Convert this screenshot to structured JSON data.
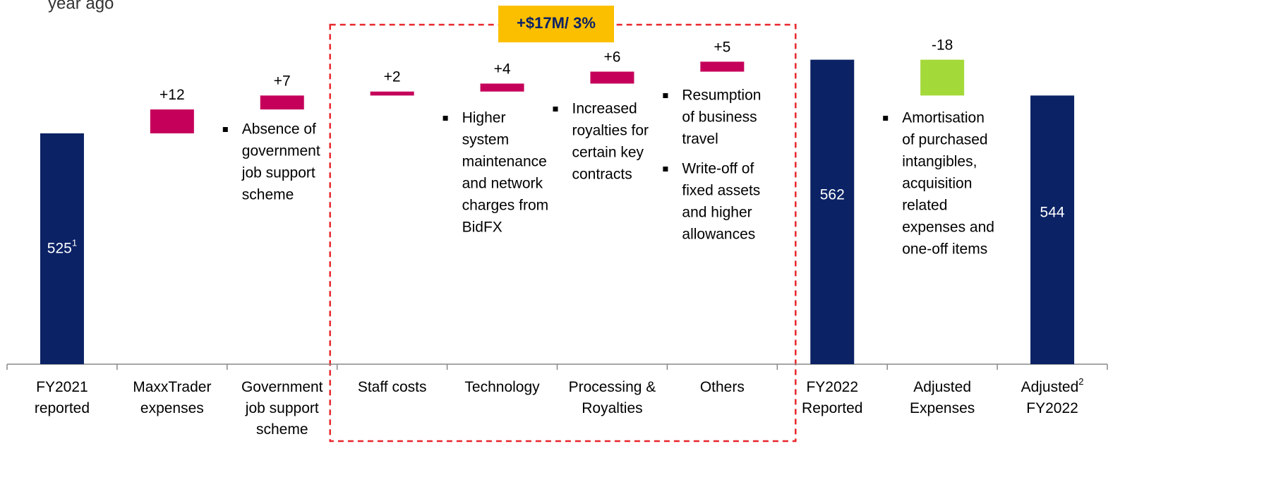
{
  "chart_data": {
    "type": "waterfall",
    "title_fragment": "year ago",
    "categories": [
      [
        "FY2021",
        "reported"
      ],
      [
        "MaxxTrader",
        "expenses"
      ],
      [
        "Government",
        "job support",
        "scheme"
      ],
      [
        "Staff costs"
      ],
      [
        "Technology"
      ],
      [
        "Processing &",
        "Royalties"
      ],
      [
        "Others"
      ],
      [
        "FY2022",
        "Reported"
      ],
      [
        "Adjusted",
        "Expenses"
      ],
      [
        "Adjusted",
        "FY2022"
      ]
    ],
    "category_notes": [
      null,
      null,
      null,
      null,
      null,
      null,
      null,
      null,
      null,
      "2"
    ],
    "values": [
      525,
      12,
      7,
      2,
      4,
      6,
      5,
      562,
      -18,
      544
    ],
    "value_labels": [
      "525",
      "+12",
      "+7",
      "+2",
      "+4",
      "+6",
      "+5",
      "562",
      "-18",
      "544"
    ],
    "value_label_notes": [
      "1",
      null,
      null,
      null,
      null,
      null,
      null,
      null,
      null,
      null
    ],
    "measure": [
      "absolute",
      "relative",
      "relative",
      "relative",
      "relative",
      "relative",
      "relative",
      "absolute",
      "relative",
      "absolute"
    ],
    "colors": {
      "total": "#0b2265",
      "increase": "#c5005a",
      "decrease": "#a4d93a"
    },
    "ylim": [
      409,
      592
    ],
    "bracket": {
      "label": "+$17M/ 3%",
      "from": 3,
      "to": 6
    },
    "notes": [
      {
        "category": 2,
        "bullets": [
          [
            "Absence of",
            "government",
            "job support",
            "scheme"
          ]
        ]
      },
      {
        "category": 4,
        "bullets": [
          [
            "Higher",
            "system",
            "maintenance",
            "and network",
            "charges from",
            "BidFX"
          ]
        ]
      },
      {
        "category": 5,
        "bullets": [
          [
            "Increased",
            "royalties for",
            "certain key",
            "contracts"
          ]
        ]
      },
      {
        "category": 6,
        "bullets": [
          [
            "Resumption",
            "of business",
            "travel"
          ],
          [
            "Write-off of",
            "fixed assets",
            "and higher",
            "allowances"
          ]
        ]
      },
      {
        "category": 8,
        "bullets": [
          [
            "Amortisation",
            "of purchased",
            "intangibles,",
            "acquisition",
            "related",
            "expenses and",
            "one-off items"
          ]
        ]
      }
    ]
  }
}
